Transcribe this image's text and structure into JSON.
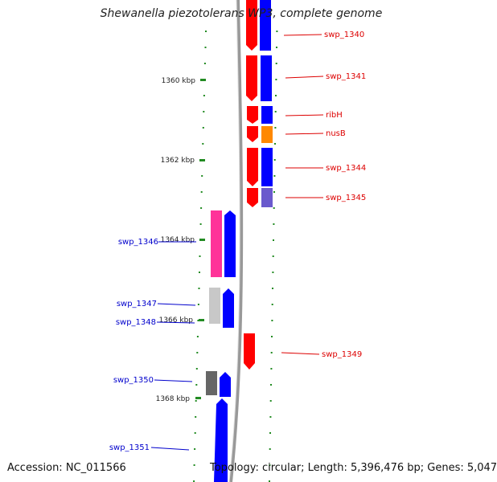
{
  "title": "Shewanella piezotolerans WP3, complete genome",
  "footer": {
    "accession": "Accession: NC_011566",
    "summary": "Topology: circular; Length: 5,396,476 bp; Genes: 5,047"
  },
  "ticks": [
    {
      "label": "1360 kbp"
    },
    {
      "label": "1362 kbp"
    },
    {
      "label": "1364 kbp"
    },
    {
      "label": "1366 kbp"
    },
    {
      "label": "1368 kbp"
    }
  ],
  "genes": [
    {
      "id": "g1340",
      "name": "swp_1340",
      "strand": "+"
    },
    {
      "id": "g1341",
      "name": "swp_1341",
      "strand": "+"
    },
    {
      "id": "g_ribh",
      "name": "ribH",
      "strand": "+"
    },
    {
      "id": "g_nusb",
      "name": "nusB",
      "strand": "+"
    },
    {
      "id": "g1344",
      "name": "swp_1344",
      "strand": "+"
    },
    {
      "id": "g1345",
      "name": "swp_1345",
      "strand": "+"
    },
    {
      "id": "g1346",
      "name": "swp_1346",
      "strand": "-"
    },
    {
      "id": "g1347",
      "name": "swp_1347",
      "strand": "-"
    },
    {
      "id": "g1348",
      "name": "swp_1348",
      "strand": "-"
    },
    {
      "id": "g1349",
      "name": "swp_1349",
      "strand": "+"
    },
    {
      "id": "g1350",
      "name": "swp_1350",
      "strand": "-"
    },
    {
      "id": "g1351",
      "name": "swp_1351",
      "strand": "-"
    }
  ],
  "colors": {
    "red_track": "#ff0000",
    "blue_track": "#0000ff",
    "pink": "#ff3399",
    "light_gray": "#c8c8c8",
    "dark_gray": "#666666",
    "orange": "#ff8800",
    "slate": "#6a5acd",
    "backbone": "#999999",
    "tick_green": "#228b22",
    "label_red": "#dd0000",
    "label_blue": "#0000cc"
  }
}
